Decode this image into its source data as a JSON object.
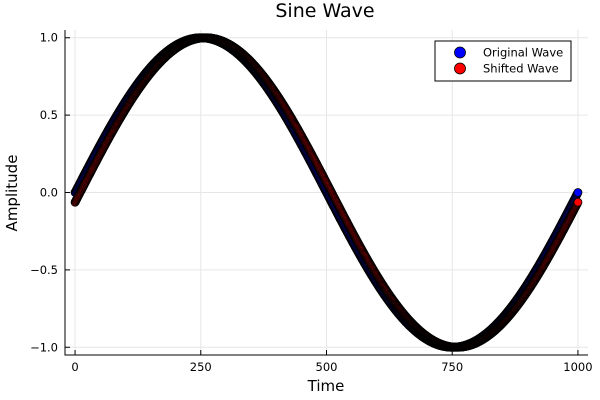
{
  "chart_data": {
    "type": "scatter",
    "title": "Sine Wave",
    "xlabel": "Time",
    "ylabel": "Amplitude",
    "xlim": [
      -20,
      1020
    ],
    "ylim": [
      -1.05,
      1.05
    ],
    "xticks": [
      0,
      250,
      500,
      750,
      1000
    ],
    "xtick_labels": [
      "0",
      "250",
      "500",
      "750",
      "1000"
    ],
    "yticks": [
      -1.0,
      -0.5,
      0.0,
      0.5,
      1.0
    ],
    "ytick_labels": [
      "−1.0",
      "−0.5",
      "0.0",
      "0.5",
      "1.0"
    ],
    "grid": true,
    "legend_position": "top-right",
    "x": {
      "start": 0,
      "end": 1000,
      "count": 1001
    },
    "series": [
      {
        "name": "Original Wave",
        "function": "sin(2*pi*t/1000)",
        "color": "#0000ff",
        "edge_color": "#000000",
        "y_start": 0.0,
        "y_end": 0.0
      },
      {
        "name": "Shifted Wave",
        "function": "sin(2*pi*t/1000 - 0.063)",
        "color": "#ff0000",
        "edge_color": "#000000",
        "y_start": -0.063,
        "y_end": -0.063
      }
    ]
  }
}
